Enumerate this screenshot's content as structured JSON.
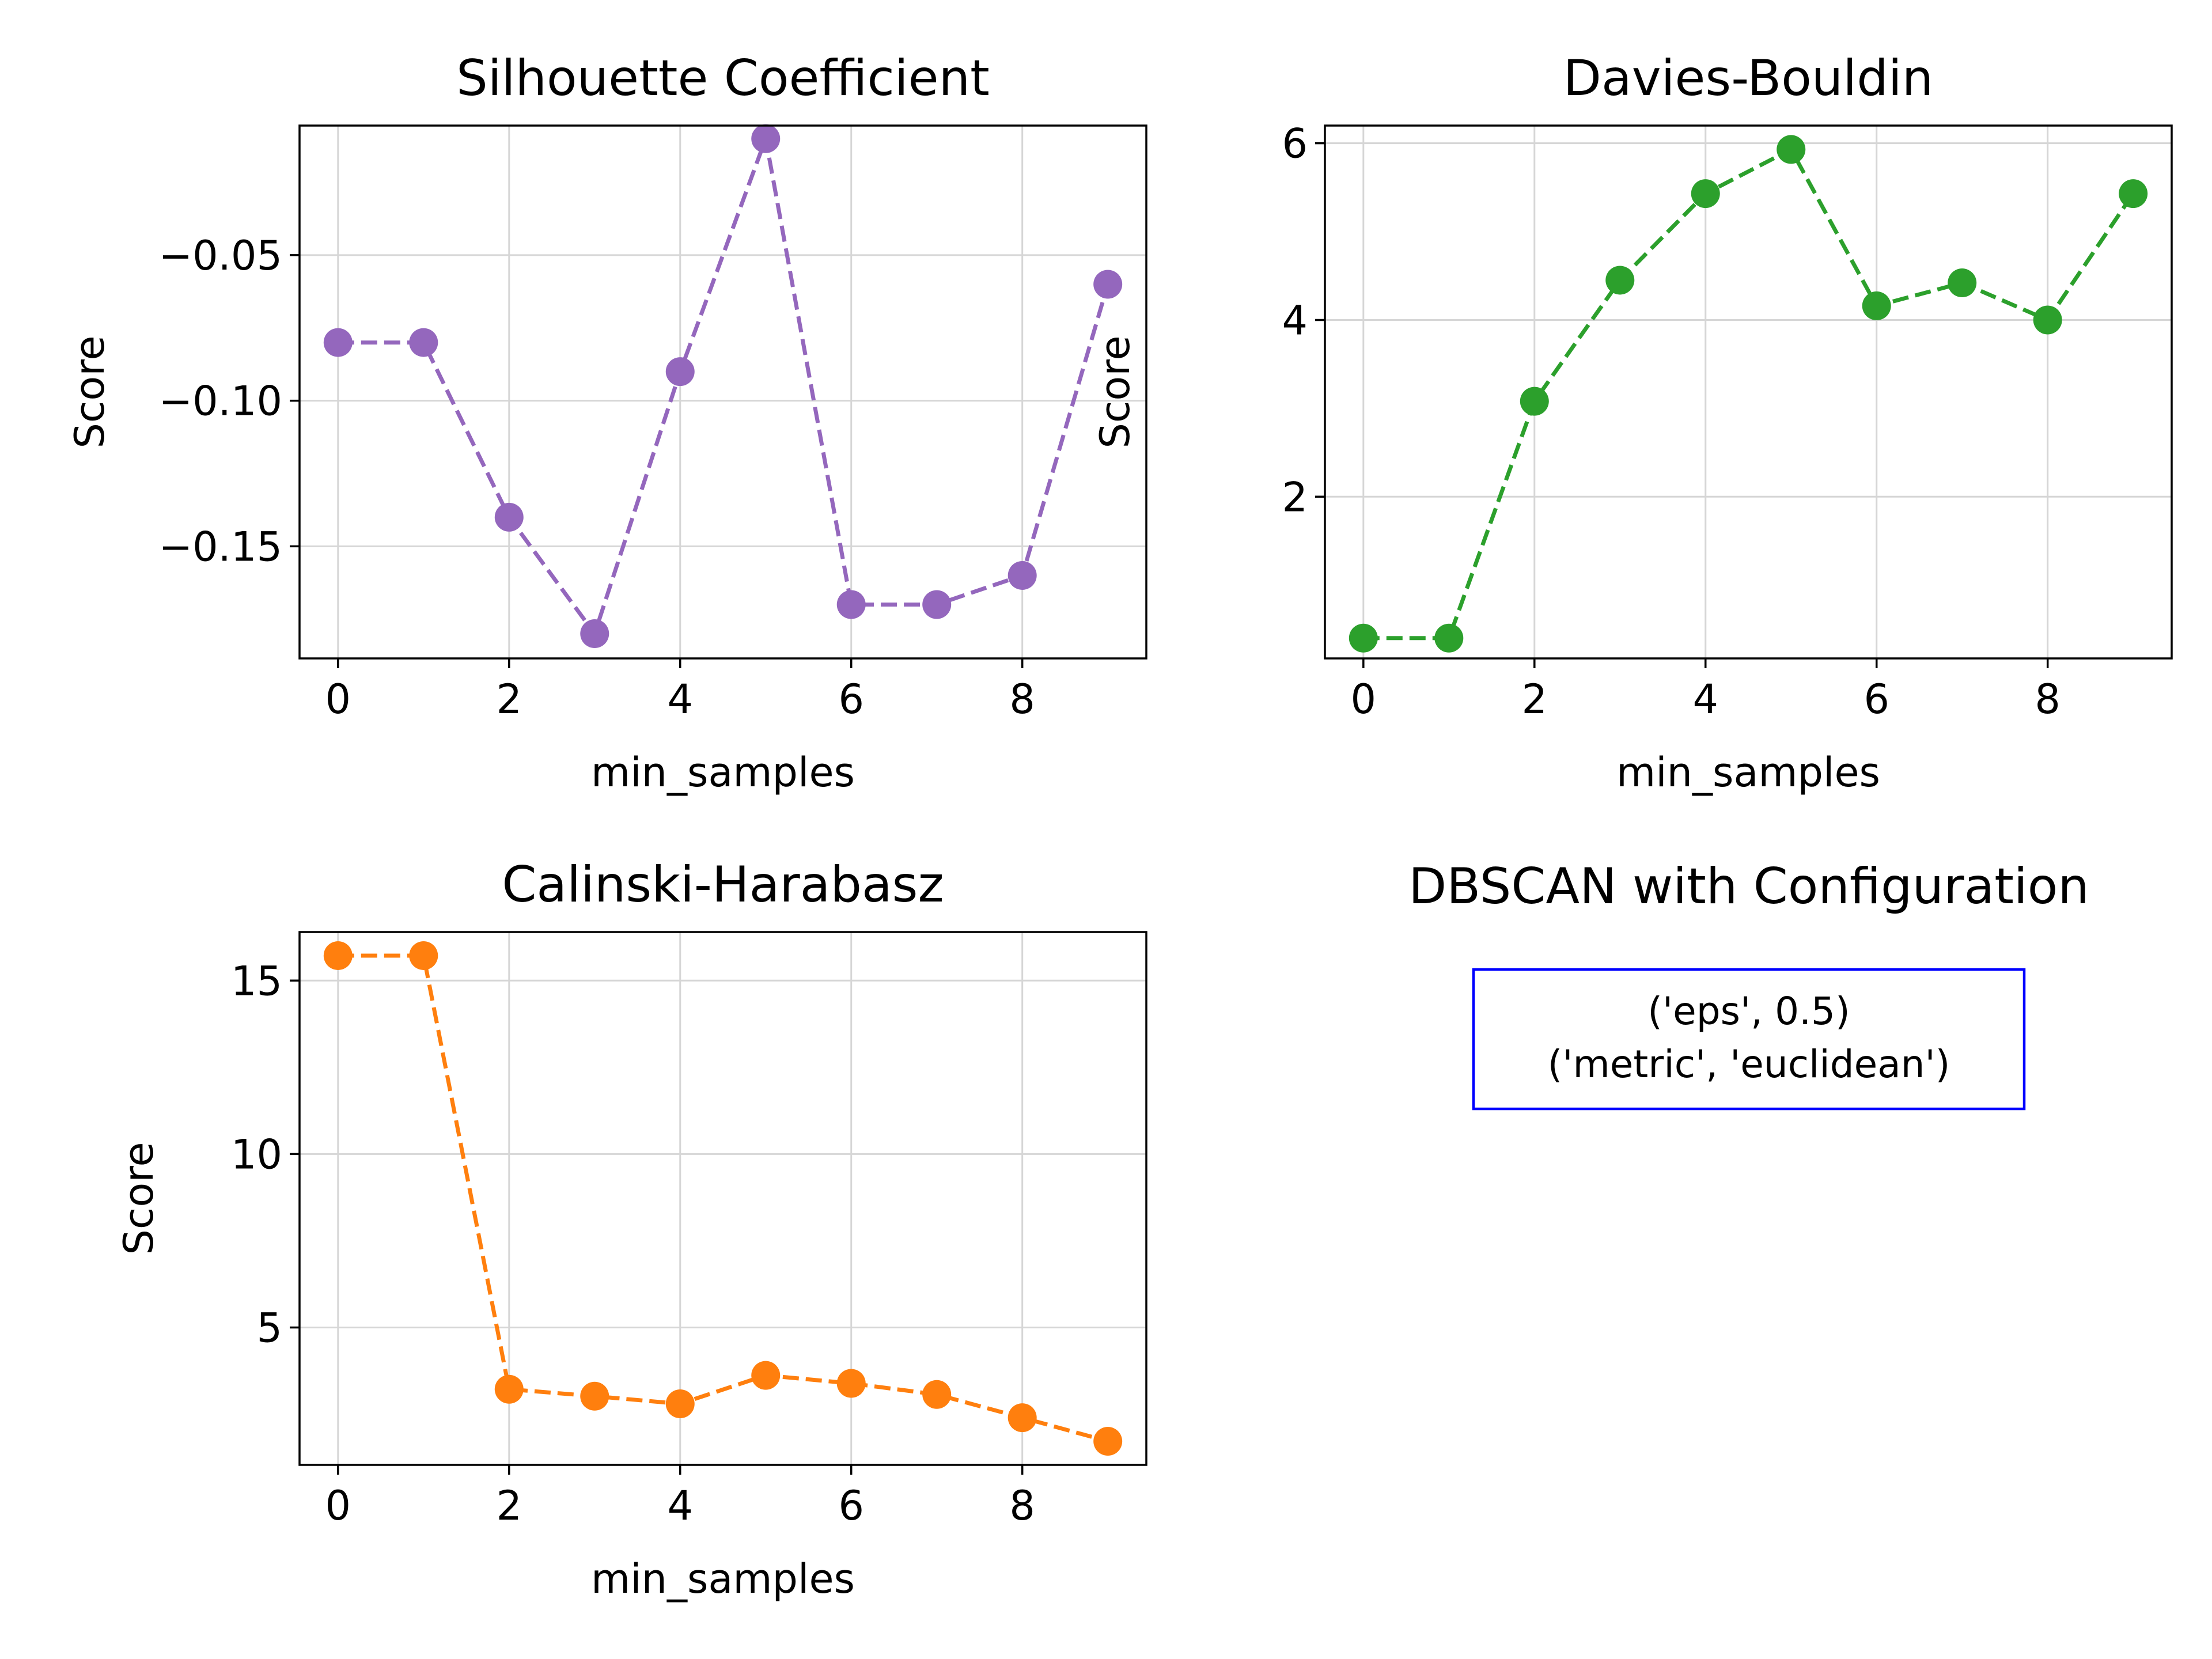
{
  "chart_data": [
    {
      "type": "line",
      "title": "Silhouette Coefficient",
      "xlabel": "min_samples",
      "ylabel": "Score",
      "x": [
        0,
        1,
        2,
        3,
        4,
        5,
        6,
        7,
        8,
        9
      ],
      "values": [
        -0.08,
        -0.08,
        -0.14,
        -0.18,
        -0.09,
        -0.01,
        -0.17,
        -0.17,
        -0.16,
        -0.06
      ],
      "xlim": [
        -0.45,
        9.45
      ],
      "ylim": [
        -0.1885,
        -0.0055
      ],
      "xticks": [
        0,
        2,
        4,
        6,
        8
      ],
      "xtick_labels": [
        "0",
        "2",
        "4",
        "6",
        "8"
      ],
      "yticks": [
        -0.05,
        -0.1,
        -0.15
      ],
      "ytick_labels": [
        "−0.05",
        "−0.10",
        "−0.15"
      ],
      "color": "#9467bd",
      "line_style": "dashed",
      "marker": "circle",
      "grid": true
    },
    {
      "type": "line",
      "title": "Davies-Bouldin",
      "xlabel": "min_samples",
      "ylabel": "Score",
      "x": [
        0,
        1,
        2,
        3,
        4,
        5,
        6,
        7,
        8,
        9
      ],
      "values": [
        0.4,
        0.4,
        3.08,
        4.45,
        5.43,
        5.93,
        4.16,
        4.42,
        4.0,
        5.43
      ],
      "xlim": [
        -0.45,
        9.45
      ],
      "ylim": [
        0.17,
        6.2
      ],
      "xticks": [
        0,
        2,
        4,
        6,
        8
      ],
      "xtick_labels": [
        "0",
        "2",
        "4",
        "6",
        "8"
      ],
      "yticks": [
        2,
        4,
        6
      ],
      "ytick_labels": [
        "2",
        "4",
        "6"
      ],
      "color": "#2ca02c",
      "line_style": "dashed",
      "marker": "circle",
      "grid": true
    },
    {
      "type": "line",
      "title": "Calinski-Harabasz",
      "xlabel": "min_samples",
      "ylabel": "Score",
      "x": [
        0,
        1,
        2,
        3,
        4,
        5,
        6,
        7,
        8,
        9
      ],
      "values": [
        15.72,
        15.72,
        3.22,
        3.02,
        2.8,
        3.62,
        3.39,
        3.07,
        2.4,
        1.72
      ],
      "xlim": [
        -0.45,
        9.45
      ],
      "ylim": [
        1.04,
        16.4
      ],
      "xticks": [
        0,
        2,
        4,
        6,
        8
      ],
      "xtick_labels": [
        "0",
        "2",
        "4",
        "6",
        "8"
      ],
      "yticks": [
        5,
        10,
        15
      ],
      "ytick_labels": [
        "5",
        "10",
        "15"
      ],
      "color": "#ff7f0e",
      "line_style": "dashed",
      "marker": "circle",
      "grid": true
    }
  ],
  "config_panel": {
    "title": "DBSCAN with Configuration",
    "lines": [
      "('eps', 0.5)",
      "('metric', 'euclidean')"
    ],
    "border_color": "#0000ff"
  }
}
